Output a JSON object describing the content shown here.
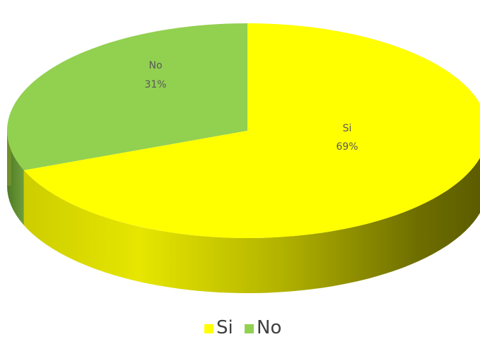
{
  "chart_data": {
    "type": "pie",
    "style": "3d",
    "slices": [
      {
        "label": "Si",
        "value": 69,
        "display": "69%",
        "color": "#ffff00",
        "side_color": "#c9c900"
      },
      {
        "label": "No",
        "value": 31,
        "display": "31%",
        "color": "#92d050",
        "side_color": "#5e8a2e"
      }
    ],
    "legend": {
      "placement": "bottom",
      "items": [
        "Si",
        "No"
      ]
    },
    "data_labels": "category-and-percent"
  }
}
